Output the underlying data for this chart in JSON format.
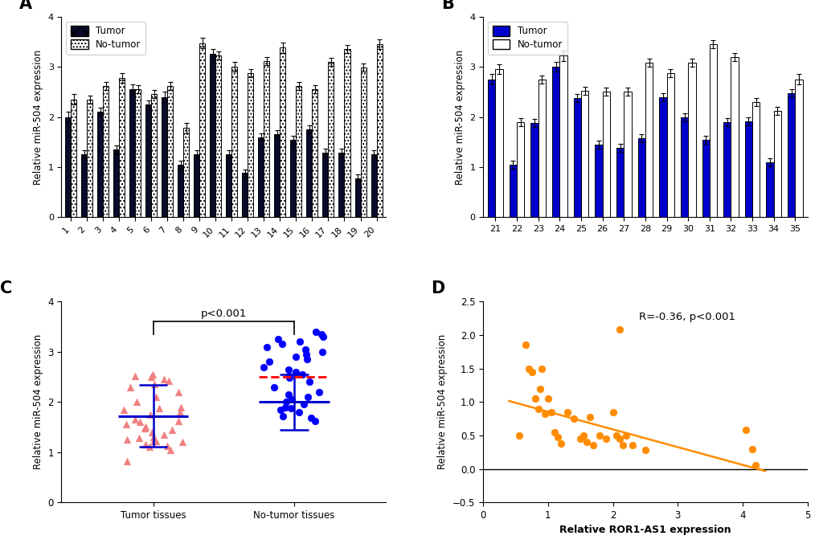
{
  "panel_A": {
    "cases": [
      1,
      2,
      3,
      4,
      5,
      6,
      7,
      8,
      9,
      10,
      11,
      12,
      13,
      14,
      15,
      16,
      17,
      18,
      19,
      20
    ],
    "tumor_vals": [
      2.0,
      1.25,
      2.1,
      1.35,
      2.55,
      2.25,
      2.4,
      1.05,
      1.25,
      3.25,
      1.25,
      0.88,
      1.6,
      1.65,
      1.55,
      1.75,
      1.28,
      1.28,
      0.78,
      1.25
    ],
    "tumor_err": [
      0.1,
      0.08,
      0.08,
      0.08,
      0.1,
      0.08,
      0.1,
      0.08,
      0.08,
      0.1,
      0.08,
      0.07,
      0.08,
      0.08,
      0.08,
      0.08,
      0.08,
      0.08,
      0.07,
      0.08
    ],
    "notumor_vals": [
      2.35,
      2.35,
      2.62,
      2.78,
      2.55,
      2.45,
      2.62,
      1.78,
      3.47,
      3.23,
      3.0,
      2.88,
      3.12,
      3.38,
      2.62,
      2.55,
      3.1,
      3.35,
      2.98,
      3.45
    ],
    "notumor_err": [
      0.1,
      0.08,
      0.08,
      0.1,
      0.08,
      0.08,
      0.08,
      0.1,
      0.1,
      0.08,
      0.1,
      0.08,
      0.08,
      0.1,
      0.08,
      0.08,
      0.08,
      0.08,
      0.08,
      0.1
    ],
    "ylabel": "Relative miR-504 expression",
    "ylim": [
      0,
      4
    ],
    "yticks": [
      0,
      1,
      2,
      3,
      4
    ],
    "label": "A"
  },
  "panel_B": {
    "cases": [
      21,
      22,
      23,
      24,
      25,
      26,
      27,
      28,
      29,
      30,
      31,
      32,
      33,
      34,
      35
    ],
    "tumor_vals": [
      2.75,
      1.05,
      1.88,
      3.0,
      2.38,
      1.45,
      1.38,
      1.58,
      2.4,
      2.0,
      1.55,
      1.9,
      1.92,
      1.1,
      2.48
    ],
    "tumor_err": [
      0.1,
      0.08,
      0.08,
      0.1,
      0.08,
      0.08,
      0.08,
      0.08,
      0.08,
      0.08,
      0.08,
      0.08,
      0.08,
      0.08,
      0.08
    ],
    "notumor_vals": [
      2.95,
      1.9,
      2.75,
      3.22,
      2.52,
      2.5,
      2.5,
      3.08,
      2.88,
      3.08,
      3.45,
      3.2,
      2.3,
      2.12,
      2.75
    ],
    "notumor_err": [
      0.1,
      0.08,
      0.08,
      0.1,
      0.08,
      0.08,
      0.08,
      0.08,
      0.08,
      0.08,
      0.08,
      0.08,
      0.08,
      0.08,
      0.1
    ],
    "ylabel": "Relative miR-504 expression",
    "ylim": [
      0,
      4
    ],
    "yticks": [
      0,
      1,
      2,
      3,
      4
    ],
    "label": "B"
  },
  "panel_C": {
    "tumor_mean": 1.72,
    "tumor_sd": 0.62,
    "notumor_mean": 2.0,
    "notumor_sd": 0.55,
    "notumor_median": 2.5,
    "tumor_points_y": [
      0.82,
      1.05,
      1.1,
      1.12,
      1.2,
      1.22,
      1.22,
      1.25,
      1.28,
      1.3,
      1.35,
      1.45,
      1.5,
      1.55,
      1.6,
      1.62,
      1.65,
      1.75,
      1.8,
      1.85,
      1.88,
      1.9,
      2.0,
      2.1,
      2.2,
      2.3,
      2.35,
      2.42,
      2.45,
      2.5,
      2.52,
      2.55,
      1.15,
      1.4,
      1.48
    ],
    "notumor_points_y": [
      1.62,
      1.68,
      1.72,
      1.8,
      1.85,
      1.88,
      1.9,
      1.95,
      2.0,
      2.05,
      2.1,
      2.15,
      2.2,
      2.3,
      2.4,
      2.48,
      2.52,
      2.55,
      2.6,
      2.65,
      2.7,
      2.8,
      2.85,
      2.9,
      2.95,
      3.0,
      3.05,
      3.1,
      3.15,
      3.2,
      3.25,
      3.3,
      3.35,
      3.4
    ],
    "tumor_color": "#F08080",
    "notumor_color": "#0000FF",
    "mean_line_color": "#0000CD",
    "median_line_color": "#FF0000",
    "ylabel": "Relative miR-504 expression",
    "xlabel_tumor": "Tumor tissues",
    "xlabel_notumor": "No-tumor tissues",
    "ylim": [
      0,
      4
    ],
    "yticks": [
      0,
      1,
      2,
      3,
      4
    ],
    "pvalue_text": "p<0.001",
    "label": "C"
  },
  "panel_D": {
    "x": [
      0.55,
      0.65,
      0.7,
      0.75,
      0.8,
      0.85,
      0.88,
      0.9,
      0.95,
      1.0,
      1.05,
      1.1,
      1.15,
      1.2,
      1.3,
      1.4,
      1.5,
      1.55,
      1.6,
      1.65,
      1.7,
      1.8,
      1.9,
      2.0,
      2.05,
      2.1,
      2.15,
      2.2,
      2.3,
      2.5,
      4.05,
      4.15,
      4.2
    ],
    "y": [
      0.5,
      1.85,
      1.5,
      1.45,
      1.05,
      0.9,
      1.2,
      1.5,
      0.82,
      1.05,
      0.85,
      0.55,
      0.48,
      0.38,
      0.85,
      0.75,
      0.45,
      0.5,
      0.4,
      0.78,
      0.35,
      0.5,
      0.45,
      0.85,
      0.5,
      0.45,
      0.35,
      0.5,
      0.35,
      0.28,
      0.58,
      0.3,
      0.05
    ],
    "outlier_x": [
      2.1
    ],
    "outlier_y": [
      2.08
    ],
    "color": "#FF8C00",
    "line_color": "#FF8C00",
    "xlabel": "Relative ROR1-AS1 expression",
    "ylabel": "Relative miR-504 expression",
    "xlim": [
      0,
      5
    ],
    "ylim": [
      -0.5,
      2.5
    ],
    "xticks": [
      0,
      1,
      2,
      3,
      4,
      5
    ],
    "yticks": [
      -0.5,
      0.0,
      0.5,
      1.0,
      1.5,
      2.0,
      2.5
    ],
    "annotation": "R=-0.36, p<0.001",
    "label": "D",
    "slope": -0.265,
    "intercept": 1.12
  }
}
